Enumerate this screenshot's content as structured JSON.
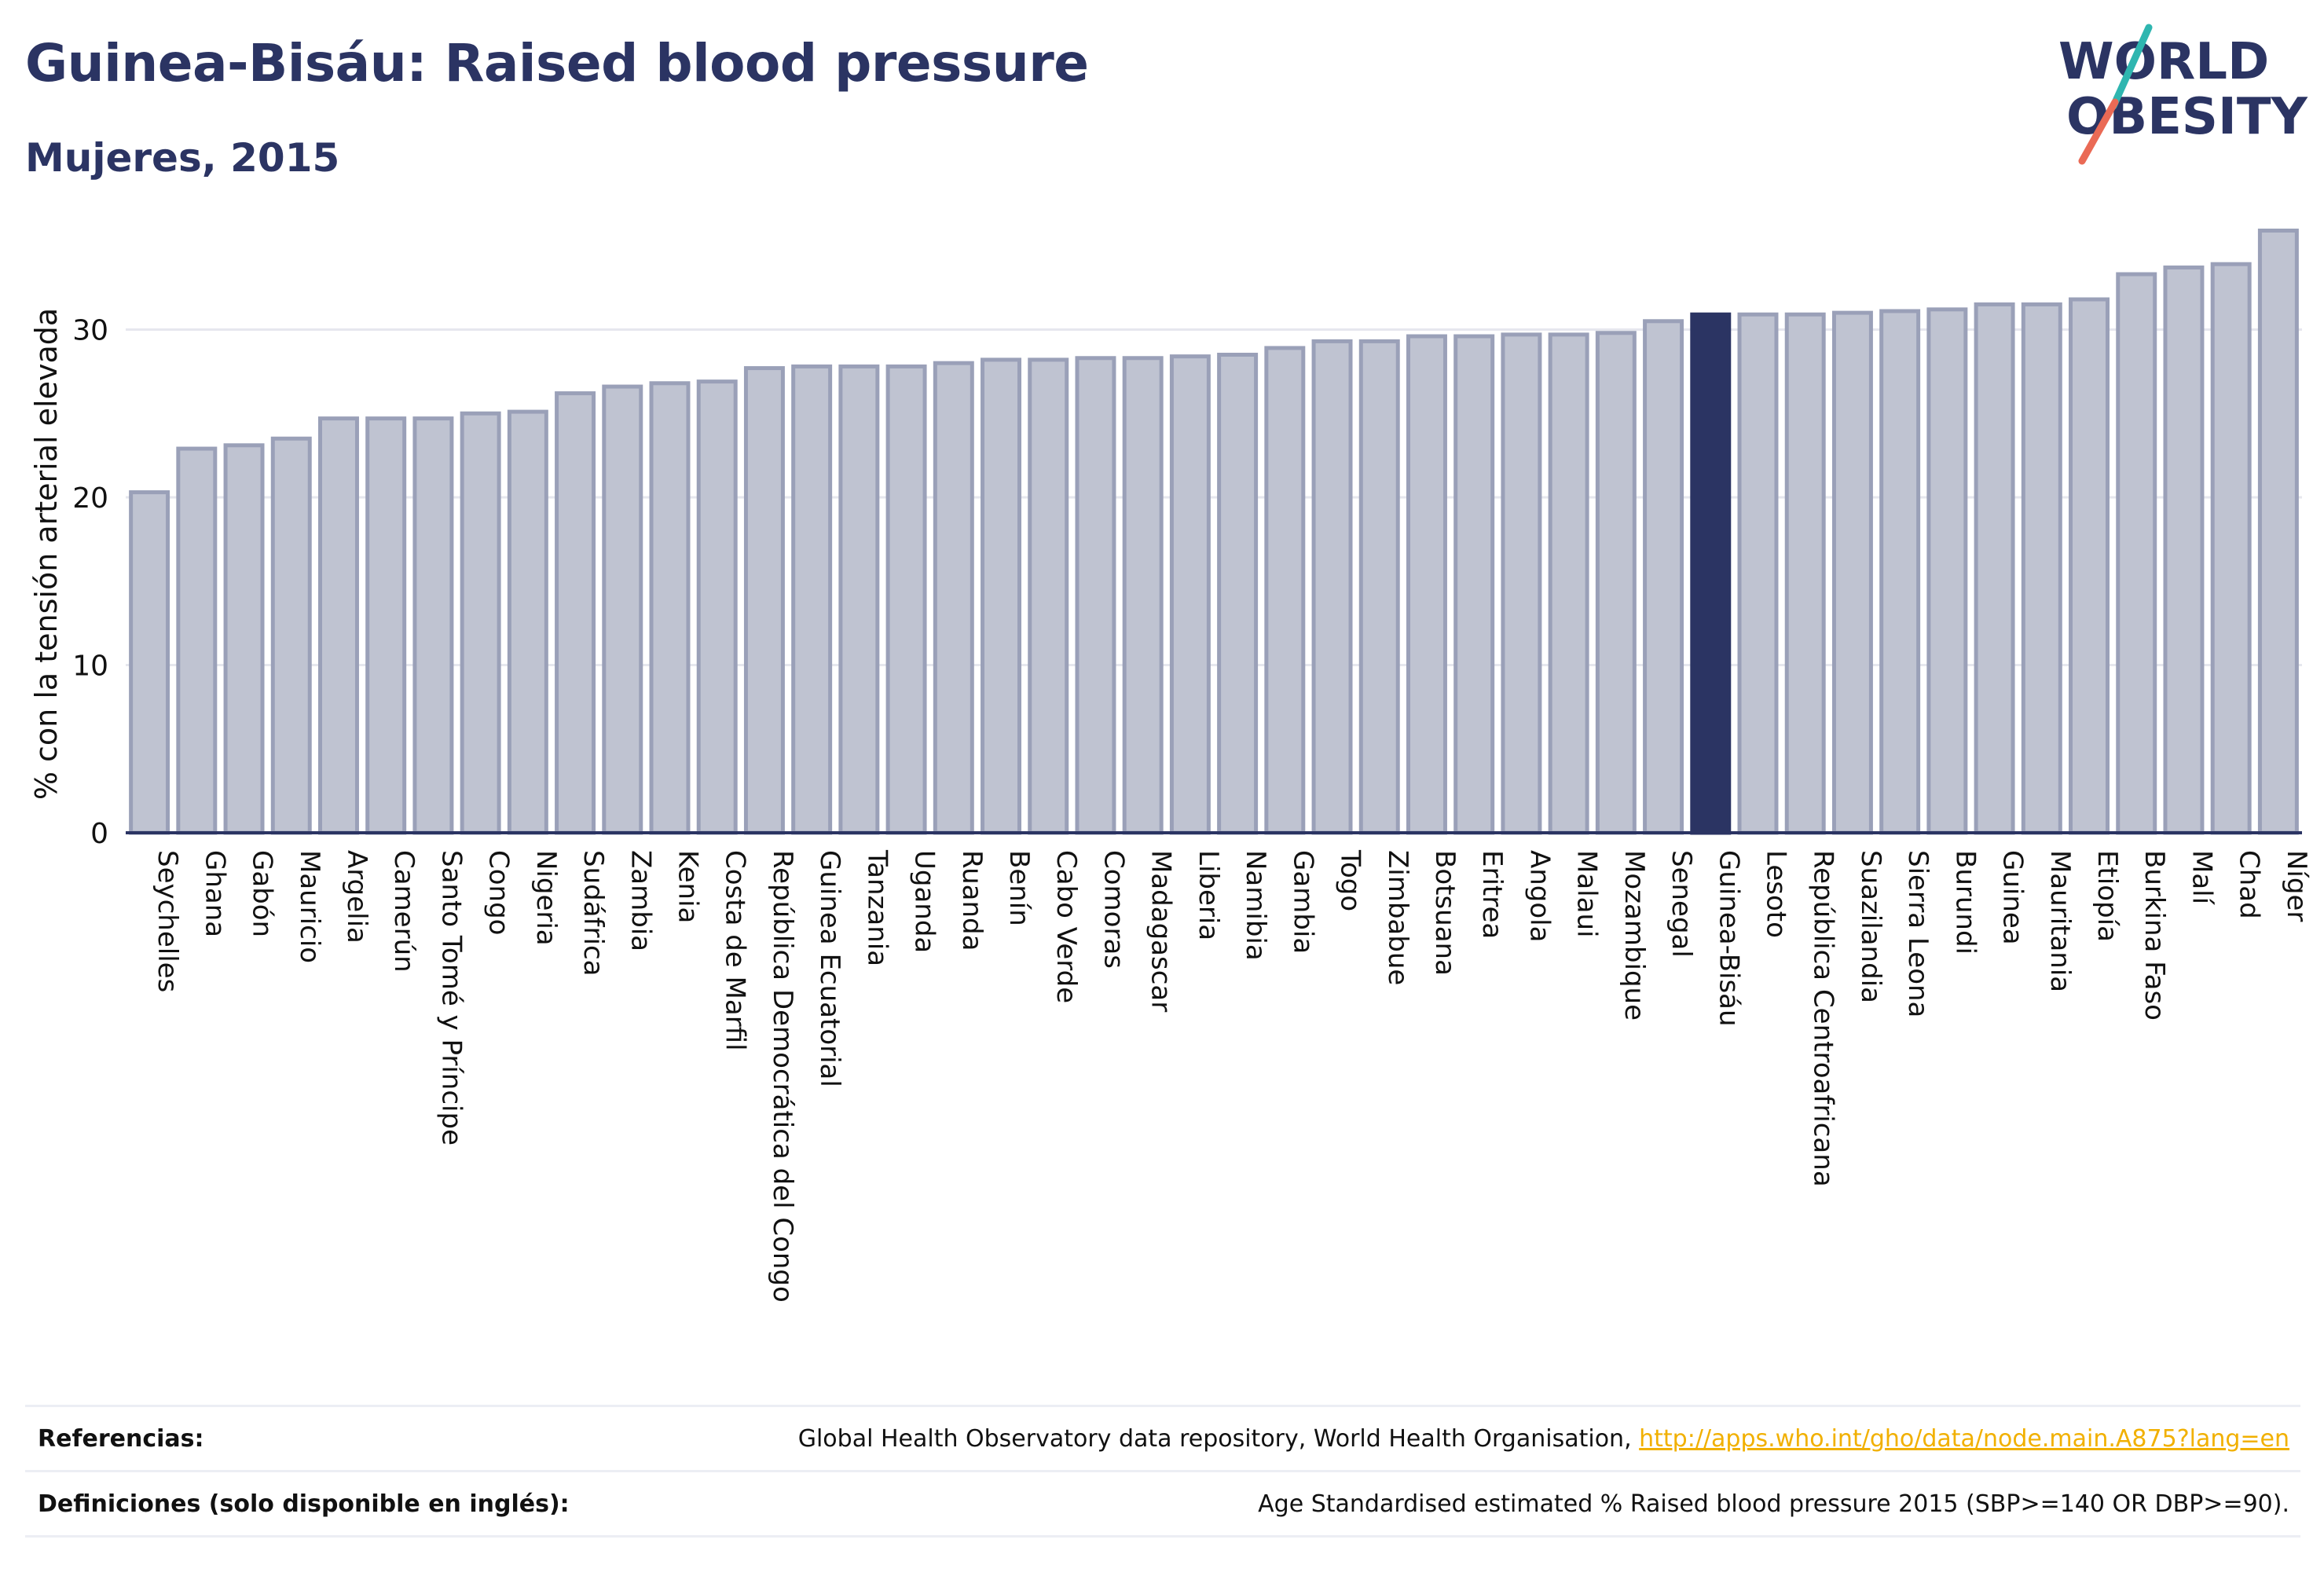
{
  "header": {
    "title": "Guinea-Bisáu: Raised blood pressure",
    "subtitle": "Mujeres, 2015"
  },
  "logo": {
    "line1": "WORLD",
    "line2": "OBESITY",
    "colors": {
      "text": "#2b3463",
      "slash_teal": "#2fb6b0",
      "slash_coral": "#ea6a55"
    }
  },
  "colors": {
    "bar_fill": "#bfc3d1",
    "bar_stroke": "#9aa0b8",
    "highlight_fill": "#2b3463",
    "axis": "#2b3463",
    "grid": "#e6e7ee",
    "link": "#f1b000"
  },
  "chart_data": {
    "type": "bar",
    "title": "",
    "xlabel": "",
    "ylabel": "% con la tensión arterial elevada",
    "ylim": [
      0,
      37
    ],
    "yticks": [
      0,
      10,
      20,
      30
    ],
    "grid": true,
    "highlight": "Guinea-Bisáu",
    "categories": [
      "Seychelles",
      "Ghana",
      "Gabón",
      "Mauricio",
      "Argelia",
      "Camerún",
      "Santo Tomé y Príncipe",
      "Congo",
      "Nigeria",
      "Sudáfrica",
      "Zambia",
      "Kenia",
      "Costa de Marfil",
      "República Democrática del Congo",
      "Guinea Ecuatorial",
      "Tanzania",
      "Uganda",
      "Ruanda",
      "Benín",
      "Cabo Verde",
      "Comoras",
      "Madagascar",
      "Liberia",
      "Namibia",
      "Gambia",
      "Togo",
      "Zimbabue",
      "Botsuana",
      "Eritrea",
      "Angola",
      "Malaui",
      "Mozambique",
      "Senegal",
      "Guinea-Bisáu",
      "Lesoto",
      "República Centroafricana",
      "Suazilandia",
      "Sierra Leona",
      "Burundi",
      "Guinea",
      "Mauritania",
      "Etiopía",
      "Burkina Faso",
      "Malí",
      "Chad",
      "Níger"
    ],
    "values": [
      20.3,
      22.9,
      23.1,
      23.5,
      24.7,
      24.7,
      24.7,
      25.0,
      25.1,
      26.2,
      26.6,
      26.8,
      26.9,
      27.7,
      27.8,
      27.8,
      27.8,
      28.0,
      28.2,
      28.2,
      28.3,
      28.3,
      28.4,
      28.5,
      28.9,
      29.3,
      29.3,
      29.6,
      29.6,
      29.7,
      29.7,
      29.8,
      30.5,
      30.9,
      30.9,
      30.9,
      31.0,
      31.1,
      31.2,
      31.5,
      31.5,
      31.8,
      33.3,
      33.7,
      33.9,
      35.9
    ]
  },
  "references": [
    {
      "label": "Referencias:",
      "text": "Global Health Observatory data repository, World Health Organisation, ",
      "link": "http://apps.who.int/gho/data/node.main.A875?lang=en"
    },
    {
      "label": "Definiciones (solo disponible en inglés):",
      "text": "Age Standardised estimated % Raised blood pressure 2015 (SBP>=140 OR DBP>=90).",
      "link": ""
    }
  ]
}
